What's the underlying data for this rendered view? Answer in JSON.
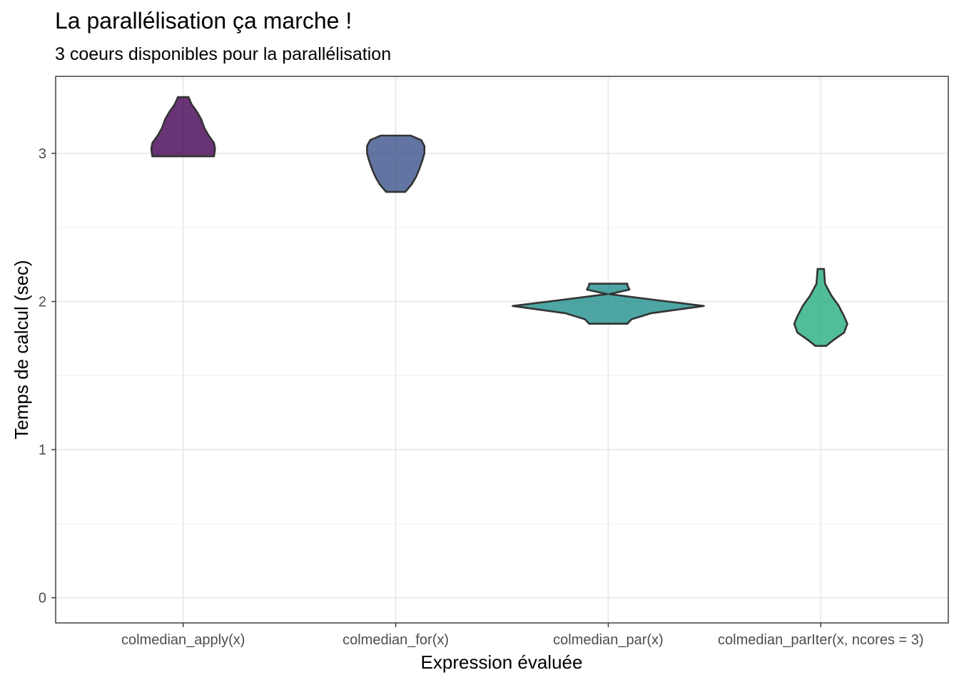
{
  "chart_data": {
    "type": "violin",
    "title": "La parallélisation ça marche !",
    "subtitle": "3 coeurs disponibles pour la parallélisation",
    "xlabel": "Expression évaluée",
    "ylabel": "Temps de calcul (sec)",
    "ylim": [
      -0.17,
      3.52
    ],
    "y_ticks": [
      0,
      1,
      2,
      3
    ],
    "y_tick_labels": [
      "0",
      "1",
      "2",
      "3"
    ],
    "grid": true,
    "legend": "none",
    "categories": [
      "colmedian_apply(x)",
      "colmedian_for(x)",
      "colmedian_par(x)",
      "colmedian_parIter(x, ncores = 3)"
    ],
    "series": [
      {
        "category": "colmedian_apply(x)",
        "color": "#440154",
        "min": 2.98,
        "max": 3.38,
        "profile": [
          [
            2.98,
            0.29
          ],
          [
            3.03,
            0.3
          ],
          [
            3.07,
            0.29
          ],
          [
            3.12,
            0.24
          ],
          [
            3.17,
            0.2
          ],
          [
            3.23,
            0.17
          ],
          [
            3.28,
            0.13
          ],
          [
            3.33,
            0.08
          ],
          [
            3.38,
            0.05
          ]
        ]
      },
      {
        "category": "colmedian_for(x)",
        "color": "#3b528b",
        "min": 2.74,
        "max": 3.12,
        "profile": [
          [
            2.74,
            0.09
          ],
          [
            2.79,
            0.15
          ],
          [
            2.84,
            0.19
          ],
          [
            2.89,
            0.22
          ],
          [
            2.95,
            0.25
          ],
          [
            3.0,
            0.27
          ],
          [
            3.05,
            0.27
          ],
          [
            3.09,
            0.24
          ],
          [
            3.12,
            0.14
          ]
        ]
      },
      {
        "category": "colmedian_par(x)",
        "color": "#21908c",
        "min": 1.85,
        "max": 2.12,
        "profile": [
          [
            1.85,
            0.18
          ],
          [
            1.88,
            0.22
          ],
          [
            1.92,
            0.4
          ],
          [
            1.97,
            0.9
          ],
          [
            2.01,
            0.45
          ],
          [
            2.05,
            0.01
          ],
          [
            2.08,
            0.2
          ],
          [
            2.11,
            0.18
          ],
          [
            2.12,
            0.18
          ]
        ]
      },
      {
        "category": "colmedian_parIter(x, ncores = 3)",
        "color": "#27ad81",
        "min": 1.7,
        "max": 2.22,
        "profile": [
          [
            1.7,
            0.05
          ],
          [
            1.74,
            0.12
          ],
          [
            1.79,
            0.22
          ],
          [
            1.85,
            0.25
          ],
          [
            1.9,
            0.22
          ],
          [
            1.97,
            0.17
          ],
          [
            2.04,
            0.1
          ],
          [
            2.12,
            0.04
          ],
          [
            2.22,
            0.03
          ]
        ]
      }
    ]
  }
}
